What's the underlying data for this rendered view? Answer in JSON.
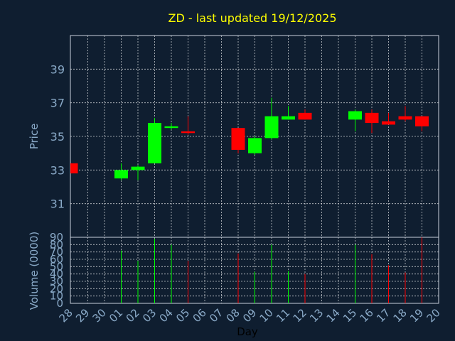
{
  "chart_data": {
    "type": "candlestick",
    "title": "ZD - last updated 19/12/2025",
    "xlabel": "Day",
    "price_panel": {
      "ylabel": "Price",
      "ylim": [
        29,
        41
      ],
      "yticks": [
        31,
        33,
        35,
        37,
        39
      ]
    },
    "volume_panel": {
      "ylabel": "Volume (0000)",
      "ylim": [
        0,
        90
      ],
      "yticks": [
        0,
        10,
        20,
        30,
        40,
        50,
        60,
        70,
        80,
        90
      ]
    },
    "x_labels": [
      "28",
      "29",
      "30",
      "01",
      "02",
      "03",
      "04",
      "05",
      "06",
      "07",
      "08",
      "09",
      "10",
      "11",
      "12",
      "13",
      "14",
      "15",
      "16",
      "17",
      "18",
      "19",
      "20"
    ],
    "candles": [
      {
        "x": "28",
        "open": 33.4,
        "high": 33.4,
        "low": 32.8,
        "close": 32.8,
        "volume": 0
      },
      {
        "x": "01",
        "open": 32.5,
        "high": 33.4,
        "low": 32.4,
        "close": 33.0,
        "volume": 72
      },
      {
        "x": "02",
        "open": 33.0,
        "high": 33.3,
        "low": 32.4,
        "close": 33.2,
        "volume": 58
      },
      {
        "x": "03",
        "open": 33.4,
        "high": 36.1,
        "low": 33.4,
        "close": 35.8,
        "volume": 88
      },
      {
        "x": "04",
        "open": 35.5,
        "high": 35.8,
        "low": 35.4,
        "close": 35.6,
        "volume": 80
      },
      {
        "x": "05",
        "open": 35.3,
        "high": 36.2,
        "low": 35.1,
        "close": 35.2,
        "volume": 58
      },
      {
        "x": "08",
        "open": 35.5,
        "high": 35.5,
        "low": 34.0,
        "close": 34.2,
        "volume": 68
      },
      {
        "x": "09",
        "open": 34.0,
        "high": 35.0,
        "low": 33.9,
        "close": 34.9,
        "volume": 43
      },
      {
        "x": "10",
        "open": 34.9,
        "high": 37.3,
        "low": 34.8,
        "close": 36.2,
        "volume": 80
      },
      {
        "x": "11",
        "open": 36.0,
        "high": 36.8,
        "low": 36.0,
        "close": 36.2,
        "volume": 44
      },
      {
        "x": "12",
        "open": 36.4,
        "high": 36.6,
        "low": 36.0,
        "close": 36.0,
        "volume": 40
      },
      {
        "x": "15",
        "open": 36.0,
        "high": 36.6,
        "low": 35.3,
        "close": 36.5,
        "volume": 80
      },
      {
        "x": "16",
        "open": 36.4,
        "high": 36.6,
        "low": 35.2,
        "close": 35.8,
        "volume": 67
      },
      {
        "x": "17",
        "open": 35.9,
        "high": 36.4,
        "low": 35.7,
        "close": 35.7,
        "volume": 52
      },
      {
        "x": "18",
        "open": 36.2,
        "high": 36.8,
        "low": 35.9,
        "close": 36.0,
        "volume": 42
      },
      {
        "x": "19",
        "open": 36.2,
        "high": 36.2,
        "low": 35.3,
        "close": 35.6,
        "volume": 90
      }
    ],
    "grid": true,
    "colors": {
      "background": "#0f1e30",
      "plot_border": "#c8d0dc",
      "grid": "#ffffff",
      "title": "#ffff00",
      "axis_text": "#8aaac8",
      "up": "#00ff00",
      "down": "#ff0000"
    }
  }
}
